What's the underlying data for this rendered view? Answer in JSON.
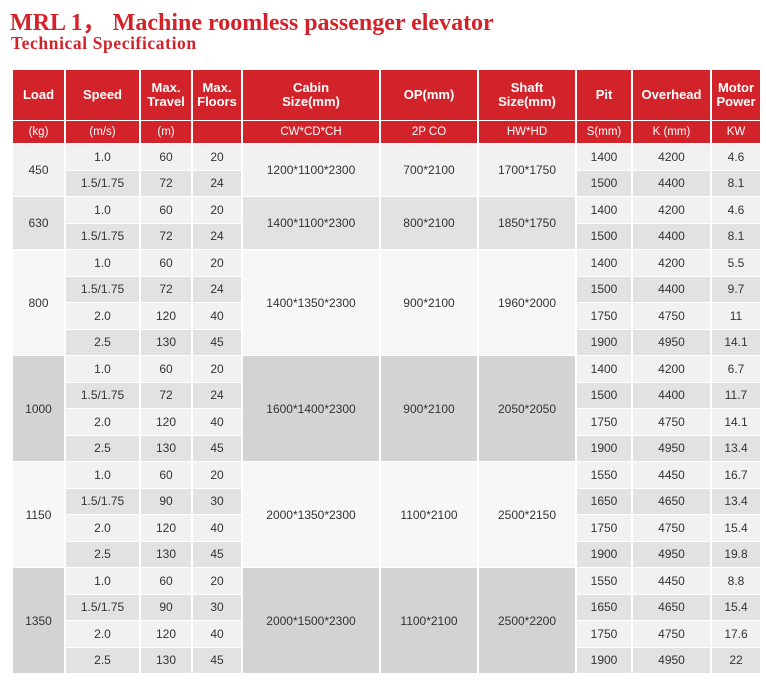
{
  "title": "MRL 1，  Machine roomless passenger elevator",
  "subtitle": "Technical Specification",
  "colors": {
    "header": "#d2232a",
    "title": "#d2232a"
  },
  "header": {
    "load": "Load",
    "load_unit": "(kg)",
    "speed": "Speed",
    "speed_unit": "(m/s)",
    "travel_l1": "Max.",
    "travel_l2": "Travel",
    "travel_unit": "(m)",
    "floors_l1": "Max.",
    "floors_l2": "Floors",
    "cabin_l1": "Cabin",
    "cabin_l2": "Size(mm)",
    "cabin_unit": "CW*CD*CH",
    "op": "OP(mm)",
    "op_unit": "2P  CO",
    "shaft_l1": "Shaft",
    "shaft_l2": "Size(mm)",
    "shaft_unit": "HW*HD",
    "pit": "Pit",
    "pit_unit": "S(mm)",
    "overhead": "Overhead",
    "overhead_unit": "K  (mm)",
    "power_l1": "Motor",
    "power_l2": "Power",
    "power_unit": "KW"
  },
  "groups": [
    {
      "load": "450",
      "cabin": "1200*1100*2300",
      "op": "700*2100",
      "shaft": "1700*1750",
      "rows": [
        {
          "speed": "1.0",
          "travel": "60",
          "floors": "20",
          "pit": "1400",
          "overhead": "4200",
          "power": "4.6"
        },
        {
          "speed": "1.5/1.75",
          "travel": "72",
          "floors": "24",
          "pit": "1500",
          "overhead": "4400",
          "power": "8.1"
        }
      ]
    },
    {
      "load": "630",
      "cabin": "1400*1100*2300",
      "op": "800*2100",
      "shaft": "1850*1750",
      "rows": [
        {
          "speed": "1.0",
          "travel": "60",
          "floors": "20",
          "pit": "1400",
          "overhead": "4200",
          "power": "4.6"
        },
        {
          "speed": "1.5/1.75",
          "travel": "72",
          "floors": "24",
          "pit": "1500",
          "overhead": "4400",
          "power": "8.1"
        }
      ]
    },
    {
      "load": "800",
      "cabin": "1400*1350*2300",
      "op": "900*2100",
      "shaft": "1960*2000",
      "rows": [
        {
          "speed": "1.0",
          "travel": "60",
          "floors": "20",
          "pit": "1400",
          "overhead": "4200",
          "power": "5.5"
        },
        {
          "speed": "1.5/1.75",
          "travel": "72",
          "floors": "24",
          "pit": "1500",
          "overhead": "4400",
          "power": "9.7"
        },
        {
          "speed": "2.0",
          "travel": "120",
          "floors": "40",
          "pit": "1750",
          "overhead": "4750",
          "power": "11"
        },
        {
          "speed": "2.5",
          "travel": "130",
          "floors": "45",
          "pit": "1900",
          "overhead": "4950",
          "power": "14.1"
        }
      ]
    },
    {
      "load": "1000",
      "cabin": "1600*1400*2300",
      "op": "900*2100",
      "shaft": "2050*2050",
      "rows": [
        {
          "speed": "1.0",
          "travel": "60",
          "floors": "20",
          "pit": "1400",
          "overhead": "4200",
          "power": "6.7"
        },
        {
          "speed": "1.5/1.75",
          "travel": "72",
          "floors": "24",
          "pit": "1500",
          "overhead": "4400",
          "power": "11.7"
        },
        {
          "speed": "2.0",
          "travel": "120",
          "floors": "40",
          "pit": "1750",
          "overhead": "4750",
          "power": "14.1"
        },
        {
          "speed": "2.5",
          "travel": "130",
          "floors": "45",
          "pit": "1900",
          "overhead": "4950",
          "power": "13.4"
        }
      ]
    },
    {
      "load": "1150",
      "cabin": "2000*1350*2300",
      "op": "1100*2100",
      "shaft": "2500*2150",
      "rows": [
        {
          "speed": "1.0",
          "travel": "60",
          "floors": "20",
          "pit": "1550",
          "overhead": "4450",
          "power": "16.7"
        },
        {
          "speed": "1.5/1.75",
          "travel": "90",
          "floors": "30",
          "pit": "1650",
          "overhead": "4650",
          "power": "13.4"
        },
        {
          "speed": "2.0",
          "travel": "120",
          "floors": "40",
          "pit": "1750",
          "overhead": "4750",
          "power": "15.4"
        },
        {
          "speed": "2.5",
          "travel": "130",
          "floors": "45",
          "pit": "1900",
          "overhead": "4950",
          "power": "19.8"
        }
      ]
    },
    {
      "load": "1350",
      "cabin": "2000*1500*2300",
      "op": "1100*2100",
      "shaft": "2500*2200",
      "rows": [
        {
          "speed": "1.0",
          "travel": "60",
          "floors": "20",
          "pit": "1550",
          "overhead": "4450",
          "power": "8.8"
        },
        {
          "speed": "1.5/1.75",
          "travel": "90",
          "floors": "30",
          "pit": "1650",
          "overhead": "4650",
          "power": "15.4"
        },
        {
          "speed": "2.0",
          "travel": "120",
          "floors": "40",
          "pit": "1750",
          "overhead": "4750",
          "power": "17.6"
        },
        {
          "speed": "2.5",
          "travel": "130",
          "floors": "45",
          "pit": "1900",
          "overhead": "4950",
          "power": "22"
        }
      ]
    }
  ]
}
